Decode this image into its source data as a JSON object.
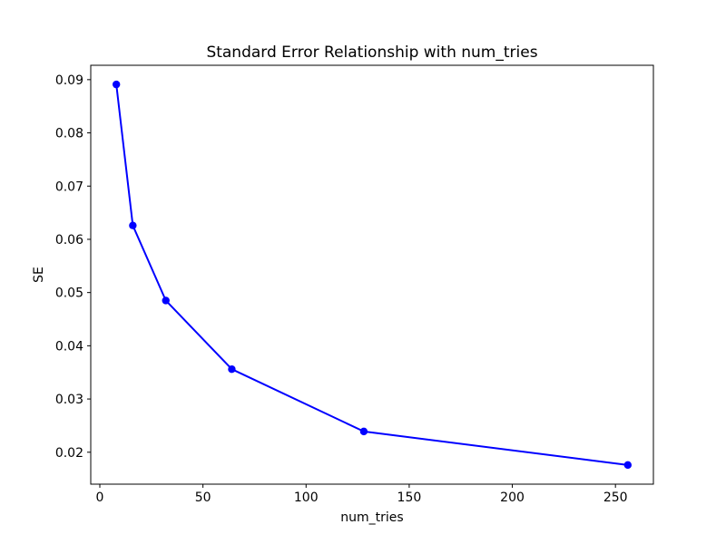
{
  "figure": {
    "background_color": "#ffffff",
    "frame_color": "#000000"
  },
  "chart_data": {
    "type": "line",
    "title": "Standard Error Relationship with num_tries",
    "xlabel": "num_tries",
    "ylabel": "SE",
    "x": [
      8,
      16,
      32,
      64,
      128,
      256
    ],
    "y": [
      0.0891,
      0.0626,
      0.0485,
      0.0356,
      0.0239,
      0.0176
    ],
    "line_color": "#0000ff",
    "marker": "circle",
    "marker_color": "#0000ff",
    "xlim": [
      -4.4,
      268.4
    ],
    "ylim": [
      0.014,
      0.0927
    ],
    "xticks": [
      0,
      50,
      100,
      150,
      200,
      250
    ],
    "xtick_labels": [
      "0",
      "50",
      "100",
      "150",
      "200",
      "250"
    ],
    "yticks": [
      0.02,
      0.03,
      0.04,
      0.05,
      0.06,
      0.07,
      0.08,
      0.09
    ],
    "ytick_labels": [
      "0.02",
      "0.03",
      "0.04",
      "0.05",
      "0.06",
      "0.07",
      "0.08",
      "0.09"
    ],
    "grid": false,
    "legend_position": "none"
  }
}
